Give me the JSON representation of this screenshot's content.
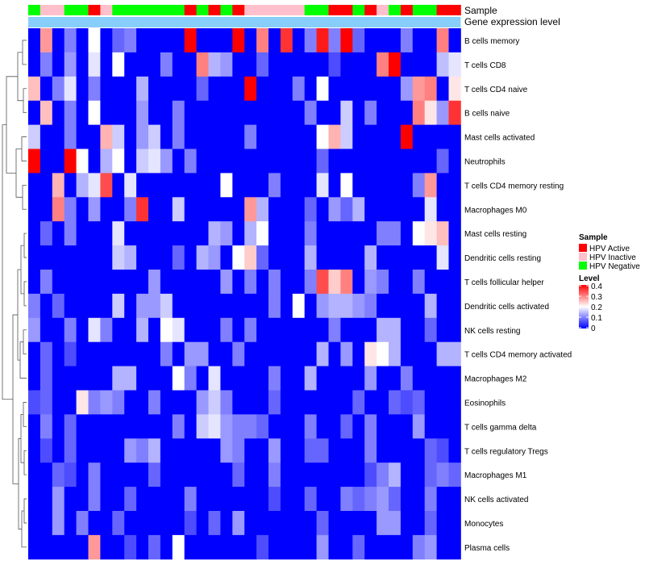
{
  "chart_data": {
    "type": "heatmap",
    "title": "",
    "annotation_tracks": [
      "Sample",
      "Gene expression level"
    ],
    "row_labels": [
      "B cells memory",
      "T cells CD8",
      "T cells CD4 naive",
      "B cells naive",
      "Mast cells activated",
      "Neutrophils",
      "T cells CD4 memory resting",
      "Macrophages M0",
      "Mast cells resting",
      "Dendritic cells resting",
      "T cells follicular helper",
      "Dendritic cells activated",
      "NK cells resting",
      "T cells CD4 memory activated",
      "Macrophages M2",
      "Eosinophils",
      "T cells gamma delta",
      "T cells regulatory  Tregs",
      "Macrophages M1",
      "NK cells activated",
      "Monocytes",
      "Plasma cells"
    ],
    "n_columns": 36,
    "sample_groups": [
      "HPV Negative",
      "HPV Inactive",
      "HPV Inactive",
      "HPV Negative",
      "HPV Negative",
      "HPV Active",
      "HPV Inactive",
      "HPV Negative",
      "HPV Negative",
      "HPV Negative",
      "HPV Negative",
      "HPV Negative",
      "HPV Negative",
      "HPV Active",
      "HPV Negative",
      "HPV Active",
      "HPV Negative",
      "HPV Active",
      "HPV Inactive",
      "HPV Inactive",
      "HPV Inactive",
      "HPV Inactive",
      "HPV Inactive",
      "HPV Negative",
      "HPV Negative",
      "HPV Active",
      "HPV Active",
      "HPV Negative",
      "HPV Active",
      "HPV Inactive",
      "HPV Negative",
      "HPV Active",
      "HPV Negative",
      "HPV Negative",
      "HPV Active",
      "HPV Active"
    ],
    "legend_sample": {
      "title": "Sample",
      "entries": [
        {
          "label": "HPV Active",
          "color": "#ff0000"
        },
        {
          "label": "HPV Inactive",
          "color": "#ffc0cb"
        },
        {
          "label": "HPV Negative",
          "color": "#00ff00"
        }
      ]
    },
    "legend_level": {
      "title": "Level",
      "ticks": [
        "0.4",
        "0.3",
        "0.2",
        "0.1",
        "0"
      ],
      "range": [
        0,
        0.4
      ]
    },
    "color_low": "#0000ff",
    "color_mid": "#ffffff",
    "color_high": "#ff0000",
    "expression_track_color": "#87cefa",
    "highlights": [
      [
        0,
        1,
        0.28
      ],
      [
        0,
        5,
        0.2
      ],
      [
        0,
        13,
        0.4
      ],
      [
        0,
        17,
        0.4
      ],
      [
        0,
        19,
        0.3
      ],
      [
        0,
        21,
        0.36
      ],
      [
        0,
        23,
        0.1
      ],
      [
        0,
        24,
        0.38
      ],
      [
        0,
        25,
        0.1
      ],
      [
        0,
        26,
        0.4
      ],
      [
        0,
        34,
        0.3
      ],
      [
        0,
        3,
        0.1
      ],
      [
        0,
        7,
        0.08
      ],
      [
        0,
        8,
        0.1
      ],
      [
        0,
        27,
        0.08
      ],
      [
        0,
        31,
        0.1
      ],
      [
        1,
        1,
        0.1
      ],
      [
        1,
        3,
        0.12
      ],
      [
        1,
        5,
        0.18
      ],
      [
        1,
        7,
        0.2
      ],
      [
        1,
        11,
        0.1
      ],
      [
        1,
        14,
        0.3
      ],
      [
        1,
        15,
        0.14
      ],
      [
        1,
        16,
        0.12
      ],
      [
        1,
        19,
        0.08
      ],
      [
        1,
        29,
        0.3
      ],
      [
        1,
        30,
        0.4
      ],
      [
        1,
        34,
        0.15
      ],
      [
        1,
        35,
        0.18
      ],
      [
        1,
        25,
        0.06
      ],
      [
        2,
        0,
        0.25
      ],
      [
        2,
        2,
        0.1
      ],
      [
        2,
        3,
        0.18
      ],
      [
        2,
        5,
        0.1
      ],
      [
        2,
        9,
        0.14
      ],
      [
        2,
        18,
        0.4
      ],
      [
        2,
        22,
        0.1
      ],
      [
        2,
        24,
        0.2
      ],
      [
        2,
        31,
        0.12
      ],
      [
        2,
        32,
        0.28
      ],
      [
        2,
        33,
        0.3
      ],
      [
        2,
        35,
        0.22
      ],
      [
        2,
        14,
        0.08
      ],
      [
        3,
        1,
        0.25
      ],
      [
        3,
        3,
        0.1
      ],
      [
        3,
        5,
        0.2
      ],
      [
        3,
        9,
        0.12
      ],
      [
        3,
        12,
        0.1
      ],
      [
        3,
        23,
        0.1
      ],
      [
        3,
        26,
        0.16
      ],
      [
        3,
        28,
        0.1
      ],
      [
        3,
        32,
        0.3
      ],
      [
        3,
        33,
        0.22
      ],
      [
        3,
        34,
        0.12
      ],
      [
        3,
        35,
        0.36
      ],
      [
        4,
        0,
        0.16
      ],
      [
        4,
        3,
        0.1
      ],
      [
        4,
        6,
        0.26
      ],
      [
        4,
        7,
        0.16
      ],
      [
        4,
        9,
        0.12
      ],
      [
        4,
        10,
        0.16
      ],
      [
        4,
        12,
        0.1
      ],
      [
        4,
        24,
        0.2
      ],
      [
        4,
        25,
        0.26
      ],
      [
        4,
        26,
        0.16
      ],
      [
        4,
        31,
        0.4
      ],
      [
        4,
        18,
        0.1
      ],
      [
        5,
        0,
        0.4
      ],
      [
        5,
        3,
        0.4
      ],
      [
        5,
        4,
        0.2
      ],
      [
        5,
        6,
        0.14
      ],
      [
        5,
        7,
        0.2
      ],
      [
        5,
        9,
        0.16
      ],
      [
        5,
        10,
        0.18
      ],
      [
        5,
        11,
        0.12
      ],
      [
        5,
        13,
        0.1
      ],
      [
        5,
        24,
        0.08
      ],
      [
        5,
        34,
        0.08
      ],
      [
        6,
        2,
        0.26
      ],
      [
        6,
        4,
        0.14
      ],
      [
        6,
        5,
        0.18
      ],
      [
        6,
        6,
        0.34
      ],
      [
        6,
        8,
        0.18
      ],
      [
        6,
        16,
        0.2
      ],
      [
        6,
        24,
        0.18
      ],
      [
        6,
        26,
        0.2
      ],
      [
        6,
        33,
        0.28
      ],
      [
        6,
        20,
        0.1
      ],
      [
        6,
        32,
        0.1
      ],
      [
        7,
        2,
        0.3
      ],
      [
        7,
        3,
        0.1
      ],
      [
        7,
        5,
        0.12
      ],
      [
        7,
        8,
        0.1
      ],
      [
        7,
        9,
        0.36
      ],
      [
        7,
        12,
        0.16
      ],
      [
        7,
        18,
        0.28
      ],
      [
        7,
        19,
        0.14
      ],
      [
        7,
        25,
        0.12
      ],
      [
        7,
        27,
        0.14
      ],
      [
        7,
        33,
        0.18
      ],
      [
        7,
        23,
        0.08
      ],
      [
        7,
        26,
        0.08
      ],
      [
        8,
        1,
        0.08
      ],
      [
        8,
        3,
        0.1
      ],
      [
        8,
        7,
        0.18
      ],
      [
        8,
        15,
        0.14
      ],
      [
        8,
        16,
        0.12
      ],
      [
        8,
        18,
        0.14
      ],
      [
        8,
        19,
        0.2
      ],
      [
        8,
        23,
        0.1
      ],
      [
        8,
        30,
        0.1
      ],
      [
        8,
        32,
        0.2
      ],
      [
        8,
        33,
        0.22
      ],
      [
        8,
        34,
        0.25
      ],
      [
        8,
        29,
        0.1
      ],
      [
        9,
        7,
        0.16
      ],
      [
        9,
        8,
        0.14
      ],
      [
        9,
        14,
        0.14
      ],
      [
        9,
        15,
        0.12
      ],
      [
        9,
        17,
        0.2
      ],
      [
        9,
        18,
        0.24
      ],
      [
        9,
        19,
        0.08
      ],
      [
        9,
        23,
        0.14
      ],
      [
        9,
        28,
        0.14
      ],
      [
        9,
        34,
        0.18
      ],
      [
        9,
        12,
        0.08
      ],
      [
        10,
        1,
        0.1
      ],
      [
        10,
        10,
        0.12
      ],
      [
        10,
        16,
        0.12
      ],
      [
        10,
        18,
        0.1
      ],
      [
        10,
        20,
        0.1
      ],
      [
        10,
        23,
        0.1
      ],
      [
        10,
        24,
        0.34
      ],
      [
        10,
        25,
        0.24
      ],
      [
        10,
        26,
        0.3
      ],
      [
        10,
        28,
        0.12
      ],
      [
        10,
        29,
        0.1
      ],
      [
        10,
        32,
        0.1
      ],
      [
        11,
        0,
        0.1
      ],
      [
        11,
        2,
        0.08
      ],
      [
        11,
        7,
        0.16
      ],
      [
        11,
        9,
        0.12
      ],
      [
        11,
        10,
        0.12
      ],
      [
        11,
        11,
        0.16
      ],
      [
        11,
        20,
        0.1
      ],
      [
        11,
        22,
        0.2
      ],
      [
        11,
        24,
        0.12
      ],
      [
        11,
        25,
        0.14
      ],
      [
        11,
        26,
        0.14
      ],
      [
        11,
        27,
        0.12
      ],
      [
        11,
        28,
        0.1
      ],
      [
        11,
        33,
        0.14
      ],
      [
        12,
        0,
        0.12
      ],
      [
        12,
        3,
        0.1
      ],
      [
        12,
        5,
        0.18
      ],
      [
        12,
        6,
        0.1
      ],
      [
        12,
        9,
        0.14
      ],
      [
        12,
        11,
        0.2
      ],
      [
        12,
        12,
        0.18
      ],
      [
        12,
        16,
        0.1
      ],
      [
        12,
        18,
        0.1
      ],
      [
        12,
        25,
        0.1
      ],
      [
        12,
        29,
        0.14
      ],
      [
        12,
        30,
        0.14
      ],
      [
        12,
        33,
        0.08
      ],
      [
        13,
        1,
        0.08
      ],
      [
        13,
        3,
        0.06
      ],
      [
        13,
        11,
        0.1
      ],
      [
        13,
        13,
        0.12
      ],
      [
        13,
        14,
        0.12
      ],
      [
        13,
        17,
        0.1
      ],
      [
        13,
        24,
        0.14
      ],
      [
        13,
        26,
        0.12
      ],
      [
        13,
        28,
        0.22
      ],
      [
        13,
        29,
        0.2
      ],
      [
        13,
        30,
        0.14
      ],
      [
        13,
        34,
        0.14
      ],
      [
        13,
        35,
        0.14
      ],
      [
        14,
        1,
        0.08
      ],
      [
        14,
        7,
        0.14
      ],
      [
        14,
        8,
        0.14
      ],
      [
        14,
        12,
        0.2
      ],
      [
        14,
        13,
        0.1
      ],
      [
        14,
        15,
        0.18
      ],
      [
        14,
        20,
        0.1
      ],
      [
        14,
        23,
        0.14
      ],
      [
        14,
        28,
        0.12
      ],
      [
        14,
        31,
        0.1
      ],
      [
        15,
        0,
        0.06
      ],
      [
        15,
        1,
        0.08
      ],
      [
        15,
        4,
        0.22
      ],
      [
        15,
        5,
        0.1
      ],
      [
        15,
        6,
        0.12
      ],
      [
        15,
        7,
        0.1
      ],
      [
        15,
        10,
        0.1
      ],
      [
        15,
        14,
        0.12
      ],
      [
        15,
        15,
        0.16
      ],
      [
        15,
        16,
        0.1
      ],
      [
        15,
        20,
        0.08
      ],
      [
        15,
        27,
        0.08
      ],
      [
        15,
        30,
        0.08
      ],
      [
        15,
        31,
        0.06
      ],
      [
        15,
        32,
        0.08
      ],
      [
        16,
        1,
        0.1
      ],
      [
        16,
        3,
        0.08
      ],
      [
        16,
        12,
        0.1
      ],
      [
        16,
        14,
        0.16
      ],
      [
        16,
        15,
        0.18
      ],
      [
        16,
        16,
        0.12
      ],
      [
        16,
        17,
        0.1
      ],
      [
        16,
        18,
        0.1
      ],
      [
        16,
        19,
        0.08
      ],
      [
        16,
        23,
        0.1
      ],
      [
        16,
        26,
        0.08
      ],
      [
        16,
        28,
        0.1
      ],
      [
        16,
        32,
        0.12
      ],
      [
        17,
        1,
        0.06
      ],
      [
        17,
        3,
        0.08
      ],
      [
        17,
        8,
        0.12
      ],
      [
        17,
        9,
        0.1
      ],
      [
        17,
        10,
        0.14
      ],
      [
        17,
        16,
        0.12
      ],
      [
        17,
        17,
        0.1
      ],
      [
        17,
        20,
        0.12
      ],
      [
        17,
        23,
        0.08
      ],
      [
        17,
        24,
        0.08
      ],
      [
        17,
        28,
        0.1
      ],
      [
        17,
        33,
        0.08
      ],
      [
        17,
        34,
        0.06
      ],
      [
        18,
        2,
        0.08
      ],
      [
        18,
        3,
        0.06
      ],
      [
        18,
        5,
        0.1
      ],
      [
        18,
        10,
        0.08
      ],
      [
        18,
        17,
        0.08
      ],
      [
        18,
        20,
        0.1
      ],
      [
        18,
        28,
        0.06
      ],
      [
        18,
        29,
        0.1
      ],
      [
        18,
        30,
        0.14
      ],
      [
        18,
        33,
        0.08
      ],
      [
        18,
        34,
        0.1
      ],
      [
        18,
        35,
        0.08
      ],
      [
        19,
        2,
        0.12
      ],
      [
        19,
        5,
        0.1
      ],
      [
        19,
        8,
        0.08
      ],
      [
        19,
        13,
        0.1
      ],
      [
        19,
        20,
        0.06
      ],
      [
        19,
        23,
        0.08
      ],
      [
        19,
        26,
        0.1
      ],
      [
        19,
        27,
        0.08
      ],
      [
        19,
        28,
        0.1
      ],
      [
        19,
        29,
        0.12
      ],
      [
        19,
        30,
        0.08
      ],
      [
        19,
        33,
        0.1
      ],
      [
        20,
        2,
        0.12
      ],
      [
        20,
        4,
        0.1
      ],
      [
        20,
        7,
        0.08
      ],
      [
        20,
        13,
        0.06
      ],
      [
        20,
        15,
        0.08
      ],
      [
        20,
        17,
        0.12
      ],
      [
        20,
        24,
        0.08
      ],
      [
        20,
        29,
        0.12
      ],
      [
        20,
        30,
        0.12
      ],
      [
        20,
        33,
        0.08
      ],
      [
        21,
        5,
        0.28
      ],
      [
        21,
        12,
        0.2
      ],
      [
        21,
        24,
        0.12
      ],
      [
        21,
        32,
        0.1
      ],
      [
        21,
        33,
        0.12
      ],
      [
        21,
        8,
        0.06
      ],
      [
        21,
        10,
        0.08
      ],
      [
        21,
        19,
        0.06
      ],
      [
        21,
        27,
        0.08
      ]
    ]
  }
}
